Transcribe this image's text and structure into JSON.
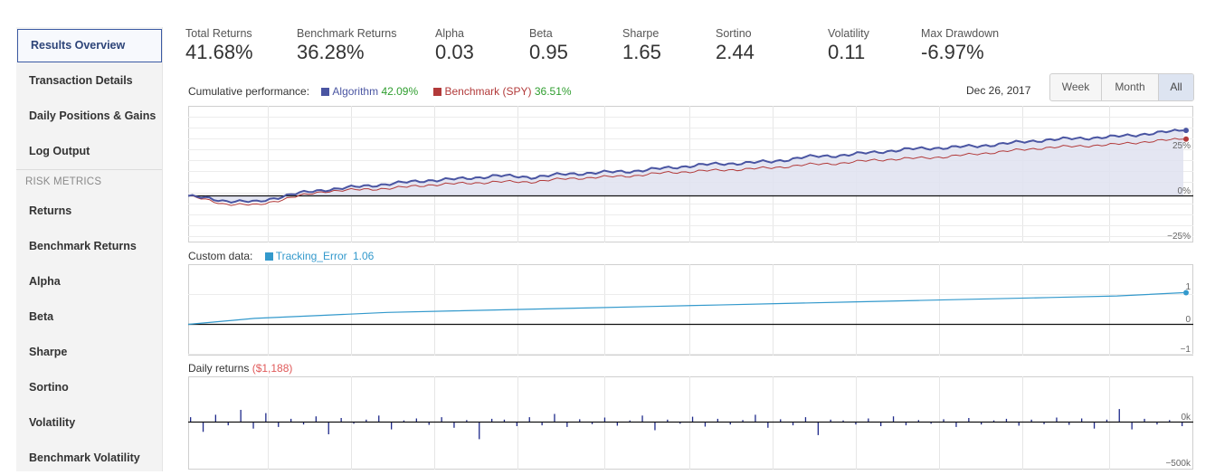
{
  "sidebar": {
    "items": [
      {
        "label": "Results Overview",
        "active": true
      },
      {
        "label": "Transaction Details"
      },
      {
        "label": "Daily Positions & Gains"
      },
      {
        "label": "Log Output"
      }
    ],
    "section_label": "RISK METRICS",
    "metrics": [
      "Returns",
      "Benchmark Returns",
      "Alpha",
      "Beta",
      "Sharpe",
      "Sortino",
      "Volatility",
      "Benchmark Volatility"
    ]
  },
  "summary": [
    {
      "label": "Total Returns",
      "value": "41.68%"
    },
    {
      "label": "Benchmark Returns",
      "value": "36.28%"
    },
    {
      "label": "Alpha",
      "value": "0.03"
    },
    {
      "label": "Beta",
      "value": "0.95"
    },
    {
      "label": "Sharpe",
      "value": "1.65"
    },
    {
      "label": "Sortino",
      "value": "2.44"
    },
    {
      "label": "Volatility",
      "value": "0.11"
    },
    {
      "label": "Max Drawdown",
      "value": "-6.97%"
    }
  ],
  "performance": {
    "title": "Cumulative performance:",
    "algo_label": "Algorithm",
    "algo_value": "42.09%",
    "bench_label": "Benchmark (SPY)",
    "bench_value": "36.51%",
    "date": "Dec 26, 2017",
    "range_buttons": [
      "Week",
      "Month",
      "All"
    ],
    "active_range": "All",
    "ticks": [
      "25%",
      "0%",
      "−25%"
    ]
  },
  "custom": {
    "title": "Custom data:",
    "series_label": "Tracking_Error",
    "series_value": "1.06",
    "ticks": [
      "1",
      "0",
      "−1"
    ]
  },
  "daily": {
    "title": "Daily returns",
    "value": "($1,188)",
    "ticks": [
      "0k",
      "−500k"
    ]
  },
  "colors": {
    "algo": "#4a55a2",
    "bench": "#b23a3a",
    "positive": "#2f9e2f",
    "negative": "#e05a5a",
    "tracking": "#3399cc",
    "bars": "#1f2a8a",
    "area": "#dfe2f0"
  },
  "chart_data": [
    {
      "type": "line",
      "title": "Cumulative performance",
      "ylim": [
        -25,
        42
      ],
      "series": [
        {
          "name": "Algorithm",
          "values": [
            0,
            -3,
            -4,
            1,
            4,
            6,
            8,
            10,
            11,
            13,
            12,
            14,
            15,
            16,
            18,
            20,
            21,
            22,
            25,
            26,
            28,
            30,
            31,
            32,
            34,
            36,
            37,
            38,
            40,
            42.09
          ]
        },
        {
          "name": "Benchmark (SPY)",
          "values": [
            0,
            -5,
            -6,
            -1,
            3,
            4,
            5,
            7,
            8,
            9,
            9,
            11,
            12,
            13,
            15,
            16,
            17,
            18,
            20,
            21,
            23,
            24,
            25,
            27,
            29,
            31,
            32,
            33,
            35,
            36.51
          ]
        }
      ]
    },
    {
      "type": "line",
      "title": "Custom data",
      "ylim": [
        -1,
        1
      ],
      "series": [
        {
          "name": "Tracking_Error",
          "values": [
            0,
            0.2,
            0.3,
            0.4,
            0.45,
            0.5,
            0.55,
            0.6,
            0.65,
            0.7,
            0.75,
            0.8,
            0.85,
            0.9,
            0.95,
            1.06
          ]
        }
      ]
    },
    {
      "type": "bar",
      "title": "Daily returns",
      "ylim": [
        -500,
        300
      ],
      "values": [
        60,
        -120,
        90,
        -40,
        150,
        -80,
        110,
        -60,
        40,
        -30,
        70,
        -150,
        50,
        -20,
        30,
        80,
        -90,
        20,
        45,
        -35,
        60,
        -70,
        25,
        -210,
        40,
        30,
        -50,
        60,
        -40,
        100,
        -60,
        35,
        -25,
        55,
        -45,
        20,
        80,
        -100,
        30,
        -20,
        65,
        -55,
        40,
        -30,
        25,
        90,
        -70,
        35,
        -40,
        60,
        -160,
        30,
        20,
        -30,
        45,
        -50,
        70,
        -40,
        25,
        -20,
        35,
        -60,
        50,
        -30,
        20,
        40,
        -45,
        30,
        -25,
        55,
        -35,
        45,
        -80,
        30,
        160,
        -90,
        40,
        -30,
        25,
        -50
      ]
    }
  ]
}
